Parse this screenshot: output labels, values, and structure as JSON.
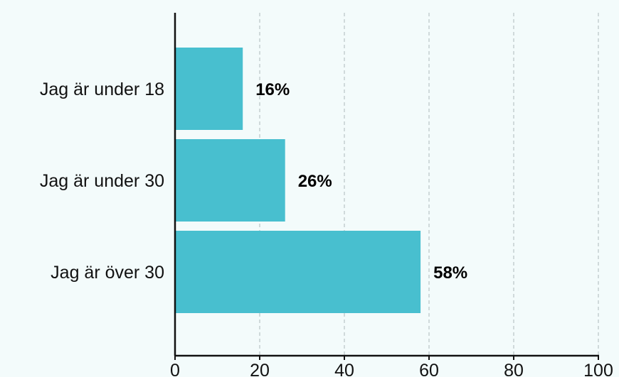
{
  "chart_data": {
    "type": "bar",
    "orientation": "horizontal",
    "categories": [
      "Jag är under 18",
      "Jag är under 30",
      "Jag är över 30"
    ],
    "values": [
      16,
      26,
      58
    ],
    "value_labels": [
      "16%",
      "26%",
      "58%"
    ],
    "xlim": [
      0,
      100
    ],
    "xticks": [
      0,
      20,
      40,
      60,
      80,
      100
    ],
    "grid": "vertical dashed",
    "bar_color": "#48bfcf",
    "axis_color": "#111111",
    "grid_color": "#b9c4c6"
  }
}
